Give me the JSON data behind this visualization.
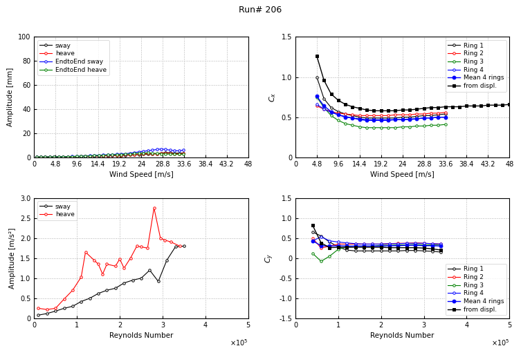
{
  "title": "Run# 206",
  "title_fontsize": 9,
  "top_left": {
    "xlabel": "Wind Speed [m/s]",
    "ylabel": "Amplitude [mm]",
    "ylim": [
      0,
      100
    ],
    "xlim": [
      0,
      48
    ],
    "xticks": [
      0,
      4.8,
      9.6,
      14.4,
      19.2,
      24,
      28.8,
      33.6,
      38.4,
      43.2,
      48
    ],
    "yticks": [
      0,
      20,
      40,
      60,
      80,
      100
    ],
    "sway_x": [
      0.5,
      1.5,
      2.5,
      3.5,
      4.5,
      5.5,
      6.5,
      7.5,
      8.5,
      9.5,
      10.5,
      11.5,
      12.5,
      13.5,
      14.5,
      15.5,
      16.5,
      17.5,
      18.5,
      19.5,
      20.5,
      21.5,
      22.5,
      23.5,
      24.5,
      25.5,
      26.5,
      27.5,
      28.5,
      29.5,
      30.5,
      31.5,
      32.5,
      33.5
    ],
    "sway_y": [
      0.2,
      0.3,
      0.3,
      0.3,
      0.4,
      0.4,
      0.5,
      0.5,
      0.5,
      0.6,
      0.7,
      0.8,
      0.9,
      1.0,
      1.1,
      1.2,
      1.3,
      1.4,
      1.5,
      1.6,
      1.7,
      1.9,
      2.1,
      2.3,
      2.5,
      2.6,
      2.8,
      3.0,
      3.5,
      4.0,
      3.8,
      3.5,
      3.5,
      3.6
    ],
    "heave_x": [
      0.5,
      1.5,
      2.5,
      3.5,
      4.5,
      5.5,
      6.5,
      7.5,
      8.5,
      9.5,
      10.5,
      11.5,
      12.5,
      13.5,
      14.5,
      15.5,
      16.5,
      17.5,
      18.5,
      19.5,
      20.5,
      21.5,
      22.5,
      23.5,
      24.5,
      25.5,
      26.5,
      27.5,
      28.5,
      29.5,
      30.5,
      31.5,
      32.5,
      33.5
    ],
    "heave_y": [
      0.3,
      0.3,
      0.4,
      0.4,
      0.5,
      0.5,
      0.5,
      0.6,
      0.6,
      0.7,
      0.8,
      0.9,
      1.0,
      1.1,
      1.2,
      1.3,
      1.4,
      1.5,
      1.6,
      1.7,
      1.9,
      2.1,
      2.4,
      2.7,
      2.9,
      3.1,
      3.0,
      2.8,
      3.2,
      3.5,
      3.3,
      3.0,
      3.0,
      3.2
    ],
    "e2e_sway_x": [
      0.5,
      1.5,
      2.5,
      3.5,
      4.5,
      5.5,
      6.5,
      7.5,
      8.5,
      9.5,
      10.5,
      11.5,
      12.5,
      13.5,
      14.5,
      15.5,
      16.5,
      17.5,
      18.5,
      19.5,
      20.5,
      21.5,
      22.5,
      23.5,
      24.5,
      25.5,
      26.5,
      27.5,
      28.5,
      29.5,
      30.5,
      31.5,
      32.5,
      33.5
    ],
    "e2e_sway_y": [
      0.2,
      0.3,
      0.3,
      0.4,
      0.4,
      0.5,
      0.6,
      0.7,
      0.8,
      0.9,
      1.0,
      1.2,
      1.4,
      1.6,
      1.8,
      2.0,
      2.2,
      2.4,
      2.6,
      2.8,
      3.0,
      3.5,
      4.0,
      4.5,
      5.0,
      5.5,
      6.0,
      6.5,
      7.0,
      6.5,
      6.0,
      5.5,
      5.5,
      6.0
    ],
    "e2e_heave_x": [
      0.5,
      1.5,
      2.5,
      3.5,
      4.5,
      5.5,
      6.5,
      7.5,
      8.5,
      9.5,
      10.5,
      11.5,
      12.5,
      13.5,
      14.5,
      15.5,
      16.5,
      17.5,
      18.5,
      19.5,
      20.5,
      21.5,
      22.5,
      23.5,
      24.5,
      25.5,
      26.5,
      27.5,
      28.5,
      29.5,
      30.5,
      31.5,
      32.5,
      33.5
    ],
    "e2e_heave_y": [
      0.2,
      0.3,
      0.3,
      0.4,
      0.4,
      0.5,
      0.5,
      0.6,
      0.7,
      0.8,
      0.9,
      1.0,
      1.2,
      1.4,
      1.5,
      1.7,
      1.9,
      2.0,
      2.2,
      2.4,
      2.6,
      2.8,
      3.1,
      3.4,
      3.6,
      3.8,
      3.5,
      3.2,
      3.0,
      2.8,
      2.7,
      2.6,
      2.5,
      2.6
    ]
  },
  "top_right": {
    "xlabel": "Wind Speed [m/s]",
    "ylabel": "C_x",
    "ylim": [
      0,
      1.5
    ],
    "xlim": [
      0,
      48
    ],
    "xticks": [
      0,
      4.8,
      9.6,
      14.4,
      19.2,
      24,
      28.8,
      33.6,
      38.4,
      43.2,
      48
    ],
    "yticks": [
      0,
      0.5,
      1.0,
      1.5
    ],
    "ring1_x": [
      4.8,
      6.4,
      8.0,
      9.6,
      11.2,
      12.8,
      14.4,
      16.0,
      17.6,
      19.2,
      20.8,
      22.4,
      24.0,
      25.6,
      27.2,
      28.8,
      30.4,
      32.0,
      33.6
    ],
    "ring1_y": [
      1.0,
      0.73,
      0.62,
      0.57,
      0.54,
      0.52,
      0.5,
      0.49,
      0.49,
      0.49,
      0.49,
      0.49,
      0.5,
      0.5,
      0.51,
      0.52,
      0.52,
      0.53,
      0.54
    ],
    "ring2_x": [
      4.8,
      6.4,
      8.0,
      9.6,
      11.2,
      12.8,
      14.4,
      16.0,
      17.6,
      19.2,
      20.8,
      22.4,
      24.0,
      25.6,
      27.2,
      28.8,
      30.4,
      32.0,
      33.6
    ],
    "ring2_y": [
      0.64,
      0.6,
      0.57,
      0.55,
      0.54,
      0.53,
      0.52,
      0.52,
      0.52,
      0.52,
      0.52,
      0.53,
      0.53,
      0.53,
      0.54,
      0.54,
      0.55,
      0.55,
      0.56
    ],
    "ring3_x": [
      4.8,
      6.4,
      8.0,
      9.6,
      11.2,
      12.8,
      14.4,
      16.0,
      17.6,
      19.2,
      20.8,
      22.4,
      24.0,
      25.6,
      27.2,
      28.8,
      30.4,
      32.0,
      33.6
    ],
    "ring3_y": [
      0.75,
      0.62,
      0.52,
      0.46,
      0.42,
      0.4,
      0.38,
      0.37,
      0.37,
      0.37,
      0.37,
      0.37,
      0.38,
      0.38,
      0.39,
      0.39,
      0.4,
      0.4,
      0.41
    ],
    "ring4_x": [
      4.8,
      6.4,
      8.0,
      9.6,
      11.2,
      12.8,
      14.4,
      16.0,
      17.6,
      19.2,
      20.8,
      22.4,
      24.0,
      25.6,
      27.2,
      28.8,
      30.4,
      32.0,
      33.6
    ],
    "ring4_y": [
      0.66,
      0.6,
      0.56,
      0.53,
      0.51,
      0.49,
      0.48,
      0.47,
      0.47,
      0.47,
      0.47,
      0.47,
      0.47,
      0.48,
      0.48,
      0.49,
      0.49,
      0.5,
      0.5
    ],
    "mean_x": [
      4.8,
      6.4,
      8.0,
      9.6,
      11.2,
      12.8,
      14.4,
      16.0,
      17.6,
      19.2,
      20.8,
      22.4,
      24.0,
      25.6,
      27.2,
      28.8,
      30.4,
      32.0,
      33.6
    ],
    "mean_y": [
      0.76,
      0.64,
      0.57,
      0.53,
      0.5,
      0.49,
      0.47,
      0.46,
      0.46,
      0.46,
      0.46,
      0.47,
      0.47,
      0.47,
      0.48,
      0.49,
      0.49,
      0.5,
      0.5
    ],
    "displ_x": [
      4.8,
      6.4,
      8.0,
      9.6,
      11.2,
      12.8,
      14.4,
      16.0,
      17.6,
      19.2,
      20.8,
      22.4,
      24.0,
      25.6,
      27.2,
      28.8,
      30.4,
      32.0,
      33.6,
      35.2,
      36.8,
      38.4,
      40.0,
      41.6,
      43.2,
      44.8,
      46.4,
      48.0
    ],
    "displ_y": [
      1.26,
      0.96,
      0.79,
      0.71,
      0.66,
      0.63,
      0.61,
      0.59,
      0.58,
      0.58,
      0.58,
      0.58,
      0.59,
      0.59,
      0.6,
      0.61,
      0.62,
      0.62,
      0.63,
      0.63,
      0.63,
      0.64,
      0.64,
      0.64,
      0.65,
      0.65,
      0.65,
      0.66
    ]
  },
  "bottom_left": {
    "xlabel": "Reynolds Number",
    "ylabel": "Amplitude [m/s²]",
    "ylim": [
      0,
      3
    ],
    "xlim": [
      0,
      500000.0
    ],
    "yticks": [
      0,
      0.5,
      1.0,
      1.5,
      2.0,
      2.5,
      3.0
    ],
    "sway_x": [
      10000,
      30000,
      50000,
      70000,
      90000,
      110000,
      130000,
      150000,
      170000,
      190000,
      210000,
      230000,
      250000,
      270000,
      290000,
      310000,
      330000,
      350000
    ],
    "sway_y": [
      0.08,
      0.12,
      0.18,
      0.25,
      0.3,
      0.42,
      0.5,
      0.62,
      0.7,
      0.75,
      0.88,
      0.95,
      1.0,
      1.2,
      0.92,
      1.45,
      1.78,
      1.8
    ],
    "heave_x": [
      10000,
      30000,
      50000,
      70000,
      90000,
      110000,
      120000,
      140000,
      150000,
      160000,
      170000,
      190000,
      200000,
      210000,
      225000,
      240000,
      250000,
      265000,
      280000,
      295000,
      305000,
      320000,
      340000
    ],
    "heave_y": [
      0.25,
      0.22,
      0.25,
      0.48,
      0.7,
      1.03,
      1.65,
      1.45,
      1.35,
      1.1,
      1.35,
      1.3,
      1.48,
      1.25,
      1.5,
      1.8,
      1.78,
      1.75,
      2.75,
      2.0,
      1.95,
      1.9,
      1.8
    ]
  },
  "bottom_right": {
    "xlabel": "Reynolds Number",
    "ylabel": "C_y",
    "ylim": [
      -1.5,
      1.5
    ],
    "xlim": [
      0,
      500000.0
    ],
    "yticks": [
      -1.5,
      -1.0,
      -0.5,
      0,
      0.5,
      1.0,
      1.5
    ],
    "ring1_x": [
      40000,
      60000,
      80000,
      100000,
      120000,
      140000,
      160000,
      180000,
      200000,
      220000,
      240000,
      260000,
      280000,
      300000,
      320000,
      340000
    ],
    "ring1_y": [
      0.65,
      0.55,
      0.4,
      0.28,
      0.2,
      0.18,
      0.18,
      0.18,
      0.18,
      0.18,
      0.18,
      0.19,
      0.19,
      0.18,
      0.17,
      0.15
    ],
    "ring2_x": [
      40000,
      60000,
      80000,
      100000,
      120000,
      140000,
      160000,
      180000,
      200000,
      220000,
      240000,
      260000,
      280000,
      300000,
      320000,
      340000
    ],
    "ring2_y": [
      0.5,
      0.25,
      0.3,
      0.35,
      0.35,
      0.35,
      0.35,
      0.35,
      0.35,
      0.36,
      0.37,
      0.37,
      0.38,
      0.37,
      0.36,
      0.35
    ],
    "ring3_x": [
      40000,
      60000,
      80000,
      100000,
      120000,
      140000,
      160000,
      180000,
      200000,
      220000,
      240000,
      260000,
      280000,
      300000,
      320000,
      340000
    ],
    "ring3_y": [
      0.12,
      -0.08,
      0.05,
      0.22,
      0.28,
      0.3,
      0.3,
      0.3,
      0.32,
      0.32,
      0.33,
      0.33,
      0.34,
      0.33,
      0.33,
      0.32
    ],
    "ring4_x": [
      40000,
      60000,
      80000,
      100000,
      120000,
      140000,
      160000,
      180000,
      200000,
      220000,
      240000,
      260000,
      280000,
      300000,
      320000,
      340000
    ],
    "ring4_y": [
      0.43,
      0.53,
      0.43,
      0.4,
      0.38,
      0.36,
      0.35,
      0.35,
      0.35,
      0.36,
      0.36,
      0.37,
      0.37,
      0.37,
      0.36,
      0.35
    ],
    "mean_x": [
      40000,
      60000,
      80000,
      100000,
      120000,
      140000,
      160000,
      180000,
      200000,
      220000,
      240000,
      260000,
      280000,
      300000,
      320000,
      340000
    ],
    "mean_y": [
      0.43,
      0.31,
      0.3,
      0.31,
      0.3,
      0.3,
      0.3,
      0.3,
      0.3,
      0.31,
      0.31,
      0.32,
      0.32,
      0.31,
      0.31,
      0.3
    ],
    "displ_x": [
      40000,
      60000,
      80000,
      100000,
      120000,
      140000,
      160000,
      180000,
      200000,
      220000,
      240000,
      260000,
      280000,
      300000,
      320000,
      340000
    ],
    "displ_y": [
      0.82,
      0.38,
      0.26,
      0.27,
      0.27,
      0.27,
      0.27,
      0.27,
      0.27,
      0.26,
      0.26,
      0.26,
      0.26,
      0.25,
      0.23,
      0.2
    ]
  }
}
